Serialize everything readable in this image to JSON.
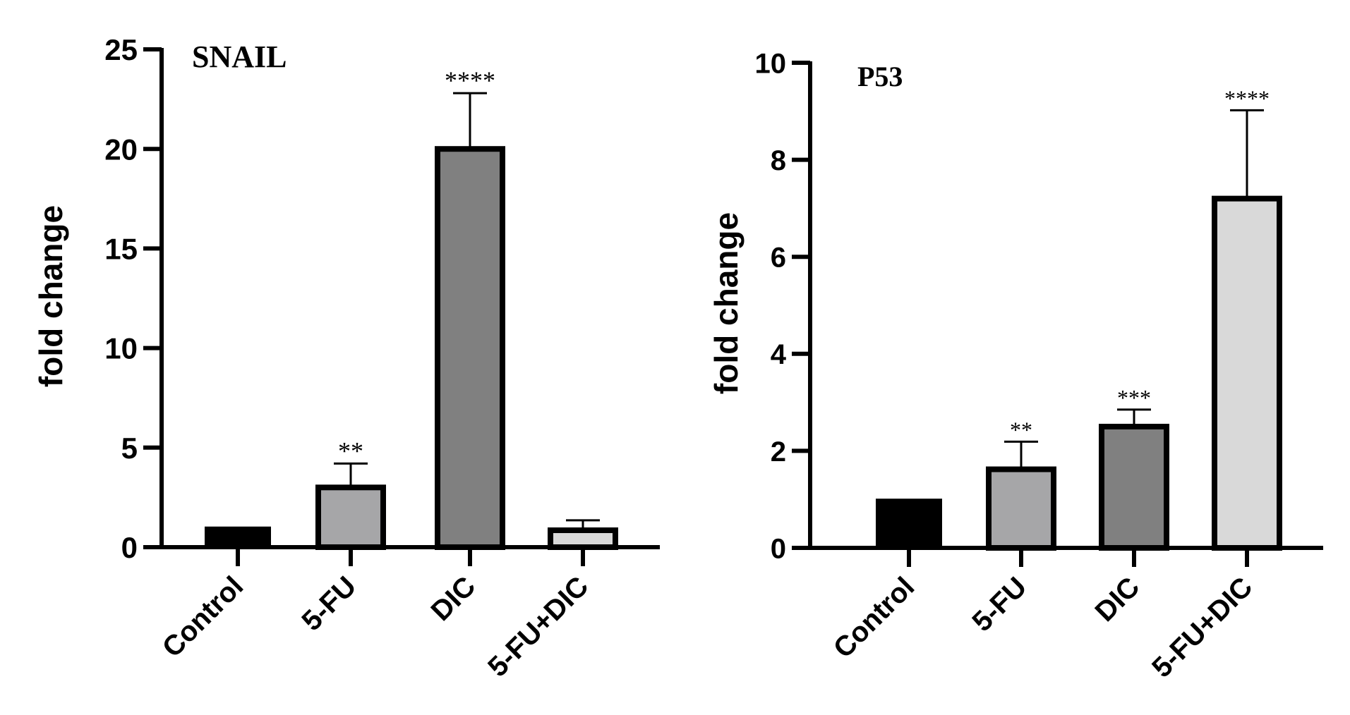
{
  "chart_data": [
    {
      "type": "bar",
      "title": "SNAIL",
      "ylabel": "fold change",
      "xlabel": "",
      "categories": [
        "Control",
        "5-FU",
        "DIC",
        "5-FU+DIC"
      ],
      "values": [
        1.0,
        3.0,
        20.0,
        0.85
      ],
      "error": [
        0.0,
        1.2,
        2.8,
        0.5
      ],
      "significance": [
        "",
        "**",
        "****",
        ""
      ],
      "bar_colors": [
        "#000000",
        "#a6a6a8",
        "#808080",
        "#d9d9d9"
      ],
      "ylim": [
        0,
        25
      ],
      "yticks": [
        0,
        5,
        10,
        15,
        20,
        25
      ],
      "grid": false
    },
    {
      "type": "bar",
      "title": "P53",
      "ylabel": "fold change",
      "xlabel": "",
      "categories": [
        "Control",
        "5-FU",
        "DIC",
        "5-FU+DIC"
      ],
      "values": [
        1.0,
        1.62,
        2.5,
        7.2
      ],
      "error": [
        0.0,
        0.57,
        0.35,
        1.82
      ],
      "significance": [
        "",
        "**",
        "***",
        "****"
      ],
      "bar_colors": [
        "#000000",
        "#a6a6a8",
        "#808080",
        "#d9d9d9"
      ],
      "ylim": [
        0,
        10
      ],
      "yticks": [
        0,
        2,
        4,
        6,
        8,
        10
      ],
      "grid": false
    }
  ]
}
